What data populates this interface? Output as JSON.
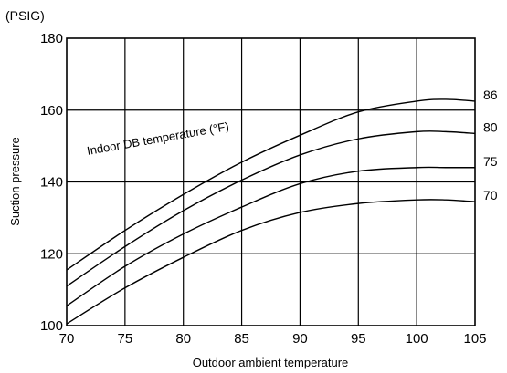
{
  "chart_data": {
    "type": "line",
    "unit_label": "(PSIG)",
    "ylabel": "Suction pressure",
    "xlabel": "Outdoor ambient temperature",
    "annotation": "Indoor DB temperature (°F)",
    "xlim": [
      70,
      105
    ],
    "ylim": [
      100,
      180
    ],
    "xticks": [
      70,
      75,
      80,
      85,
      90,
      95,
      100,
      105
    ],
    "yticks": [
      100,
      120,
      140,
      160,
      180
    ],
    "grid": true,
    "series": [
      {
        "name": "86",
        "x": [
          70,
          75,
          80,
          85,
          90,
          95,
          100,
          102.5,
          105
        ],
        "y": [
          115.5,
          126.5,
          136.5,
          145.5,
          153,
          159.5,
          162.5,
          163,
          162.5
        ]
      },
      {
        "name": "80",
        "x": [
          70,
          75,
          80,
          85,
          90,
          95,
          100,
          102.5,
          105
        ],
        "y": [
          111,
          122,
          132,
          140.5,
          147.5,
          152,
          154,
          154,
          153.5
        ]
      },
      {
        "name": "75",
        "x": [
          70,
          75,
          80,
          85,
          90,
          95,
          100,
          102.5,
          105
        ],
        "y": [
          105.5,
          116.5,
          125.5,
          133,
          139.5,
          143,
          144,
          144,
          144
        ]
      },
      {
        "name": "70",
        "x": [
          70,
          75,
          80,
          85,
          90,
          95,
          100,
          102.5,
          105
        ],
        "y": [
          100.5,
          110.5,
          119,
          126.5,
          131.5,
          134,
          135,
          135,
          134.5
        ]
      }
    ]
  }
}
